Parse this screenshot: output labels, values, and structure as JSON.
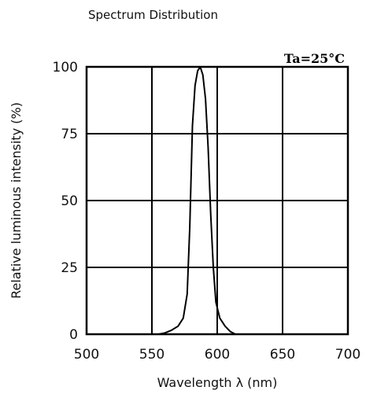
{
  "chart_data": {
    "type": "line",
    "title": "Spectrum Distribution",
    "xlabel": "Wavelength λ (nm)",
    "ylabel": "Relative luminous intensity (%)",
    "annotation": "Ta=25°C",
    "xlim": [
      500,
      700
    ],
    "ylim": [
      0,
      100
    ],
    "xticks": [
      "500",
      "550",
      "600",
      "650",
      "700"
    ],
    "yticks": [
      "0",
      "25",
      "50",
      "75",
      "100"
    ],
    "grid": true,
    "series": [
      {
        "x": [
          555,
          560,
          565,
          570,
          574,
          577,
          579,
          581,
          583,
          585,
          587,
          589,
          591,
          593,
          595,
          597,
          599,
          602,
          606,
          610,
          614
        ],
        "values": [
          0,
          0.5,
          1.5,
          3,
          6,
          15,
          40,
          78,
          93,
          98.5,
          100,
          97,
          88,
          70,
          45,
          25,
          12,
          6,
          3,
          1,
          0
        ]
      }
    ]
  }
}
